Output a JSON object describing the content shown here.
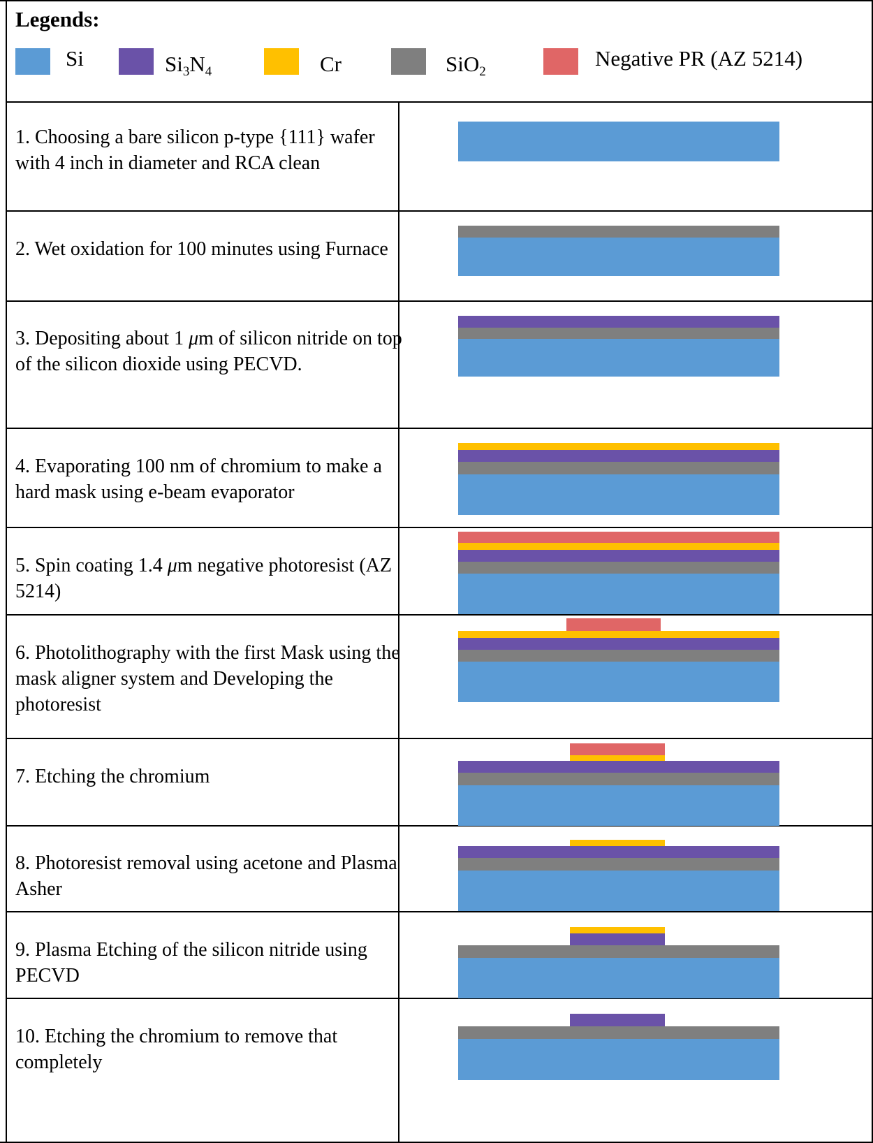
{
  "legend": {
    "title": "Legends:",
    "items": [
      {
        "key": "si",
        "label": "Si",
        "color": "#5b9bd5"
      },
      {
        "key": "si3n4",
        "label": "Si",
        "sub1": "3",
        "label2": "N",
        "sub2": "4",
        "color": "#6a52a8"
      },
      {
        "key": "cr",
        "label": "Cr",
        "color": "#ffc000"
      },
      {
        "key": "sio2",
        "label": "SiO",
        "sub1": "2",
        "color": "#7f7f7f"
      },
      {
        "key": "pr",
        "label": "Negative PR (AZ 5214)",
        "color": "#e06666"
      }
    ]
  },
  "steps": [
    {
      "pre": "1. Choosing a bare silicon p-type {111} wafer with 4 inch in diameter and RCA clean"
    },
    {
      "pre": "2. Wet oxidation for 100 minutes using Furnace"
    },
    {
      "pre": "3.  Depositing about 1 ",
      "mu": "μ",
      "post": "m of silicon nitride on top of the silicon dioxide using PECVD."
    },
    {
      "pre": "4. Evaporating 100 nm of chromium to make a hard mask using e-beam evaporator"
    },
    {
      "pre": "5. Spin coating 1.4 ",
      "mu": "μ",
      "post": "m negative photoresist (AZ 5214)"
    },
    {
      "pre": "6. Photolithography with the first Mask using the mask aligner system and Developing the photoresist"
    },
    {
      "pre": "7. Etching the chromium"
    },
    {
      "pre": "8. Photoresist removal using acetone and Plasma Asher"
    },
    {
      "pre": "9. Plasma Etching of the silicon nitride using PECVD"
    },
    {
      "pre": "10. Etching the chromium to remove that completely"
    }
  ]
}
